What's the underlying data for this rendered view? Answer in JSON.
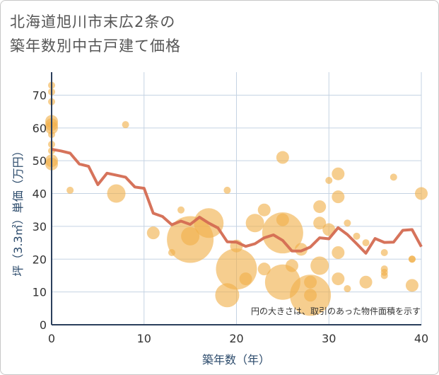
{
  "title_line1": "北海道旭川市末広2条の",
  "title_line2": "築年数別中古戸建て価格",
  "chart_data": {
    "type": "scatter",
    "xlabel": "築年数（年）",
    "ylabel": "坪（3.3㎡）単価（万円）",
    "xlim": [
      0,
      40
    ],
    "ylim": [
      0,
      77
    ],
    "xticks": [
      0,
      10,
      20,
      30,
      40
    ],
    "yticks": [
      0,
      10,
      20,
      30,
      40,
      50,
      60,
      70
    ],
    "grid": true,
    "annotation": "円の大きさは、取引のあった物件面積を示す",
    "colors": {
      "bubble": "#f0b04a",
      "line": "#d46b52",
      "grid": "#c5d3e3",
      "frame": "#2b3f5c"
    },
    "bubbles": [
      {
        "x": 0,
        "y": 73,
        "s": 1
      },
      {
        "x": 0,
        "y": 71,
        "s": 1
      },
      {
        "x": 0,
        "y": 68,
        "s": 1
      },
      {
        "x": 0,
        "y": 62,
        "s": 2
      },
      {
        "x": 0,
        "y": 61,
        "s": 2
      },
      {
        "x": 0,
        "y": 60,
        "s": 2
      },
      {
        "x": 0,
        "y": 58,
        "s": 1
      },
      {
        "x": 0,
        "y": 55,
        "s": 1
      },
      {
        "x": 0,
        "y": 53,
        "s": 1
      },
      {
        "x": 0,
        "y": 50,
        "s": 2
      },
      {
        "x": 0,
        "y": 49,
        "s": 2
      },
      {
        "x": 2,
        "y": 41,
        "s": 1
      },
      {
        "x": 7,
        "y": 40,
        "s": 3
      },
      {
        "x": 8,
        "y": 61,
        "s": 1
      },
      {
        "x": 11,
        "y": 28,
        "s": 2
      },
      {
        "x": 13,
        "y": 22,
        "s": 1
      },
      {
        "x": 14,
        "y": 35,
        "s": 1
      },
      {
        "x": 15,
        "y": 26,
        "s": 8
      },
      {
        "x": 15,
        "y": 27,
        "s": 3
      },
      {
        "x": 17,
        "y": 31,
        "s": 5
      },
      {
        "x": 19,
        "y": 41,
        "s": 1
      },
      {
        "x": 19,
        "y": 9,
        "s": 4
      },
      {
        "x": 20,
        "y": 17,
        "s": 7
      },
      {
        "x": 20,
        "y": 24,
        "s": 2
      },
      {
        "x": 21,
        "y": 14,
        "s": 2
      },
      {
        "x": 22,
        "y": 31,
        "s": 3
      },
      {
        "x": 23,
        "y": 35,
        "s": 2
      },
      {
        "x": 23,
        "y": 17,
        "s": 2
      },
      {
        "x": 25,
        "y": 28,
        "s": 7
      },
      {
        "x": 25,
        "y": 32,
        "s": 2
      },
      {
        "x": 25,
        "y": 51,
        "s": 2
      },
      {
        "x": 25,
        "y": 13,
        "s": 6
      },
      {
        "x": 26,
        "y": 18,
        "s": 2
      },
      {
        "x": 27,
        "y": 23,
        "s": 2
      },
      {
        "x": 28,
        "y": 9,
        "s": 7
      },
      {
        "x": 28,
        "y": 13,
        "s": 2
      },
      {
        "x": 28,
        "y": 9,
        "s": 2
      },
      {
        "x": 29,
        "y": 36,
        "s": 2
      },
      {
        "x": 29,
        "y": 31,
        "s": 2
      },
      {
        "x": 29,
        "y": 18,
        "s": 3
      },
      {
        "x": 30,
        "y": 44,
        "s": 1
      },
      {
        "x": 30,
        "y": 29,
        "s": 2
      },
      {
        "x": 31,
        "y": 46,
        "s": 2
      },
      {
        "x": 31,
        "y": 39,
        "s": 2
      },
      {
        "x": 31,
        "y": 22,
        "s": 2
      },
      {
        "x": 31,
        "y": 14,
        "s": 2
      },
      {
        "x": 32,
        "y": 31,
        "s": 1
      },
      {
        "x": 32,
        "y": 11,
        "s": 1
      },
      {
        "x": 33,
        "y": 27,
        "s": 1
      },
      {
        "x": 34,
        "y": 25,
        "s": 1
      },
      {
        "x": 34,
        "y": 13,
        "s": 2
      },
      {
        "x": 36,
        "y": 22,
        "s": 1
      },
      {
        "x": 36,
        "y": 17,
        "s": 1
      },
      {
        "x": 36,
        "y": 16,
        "s": 1
      },
      {
        "x": 36,
        "y": 15,
        "s": 1
      },
      {
        "x": 37,
        "y": 45,
        "s": 1
      },
      {
        "x": 39,
        "y": 20,
        "s": 1
      },
      {
        "x": 39,
        "y": 20,
        "s": 1
      },
      {
        "x": 39,
        "y": 12,
        "s": 2
      },
      {
        "x": 40,
        "y": 40,
        "s": 2
      }
    ],
    "line": {
      "x": [
        0,
        1,
        2,
        3,
        4,
        5,
        6,
        7,
        8,
        9,
        10,
        11,
        12,
        13,
        14,
        15,
        16,
        17,
        18,
        19,
        20,
        21,
        22,
        23,
        24,
        25,
        26,
        27,
        28,
        29,
        30,
        31,
        32,
        33,
        34,
        35,
        36,
        37,
        38,
        39,
        40
      ],
      "y": [
        53.5,
        53,
        52.3,
        49,
        48.3,
        42.7,
        46.2,
        45.6,
        45,
        42,
        41.6,
        34,
        33,
        30.5,
        31.6,
        30.6,
        32.8,
        31,
        29.5,
        25.3,
        25.2,
        23.9,
        24.7,
        26.5,
        27.4,
        25.7,
        22.5,
        22.5,
        23.7,
        26.5,
        26.2,
        29.6,
        27.5,
        24.7,
        21.8,
        26.3,
        25.1,
        25.2,
        28.8,
        29,
        23.8
      ]
    }
  }
}
